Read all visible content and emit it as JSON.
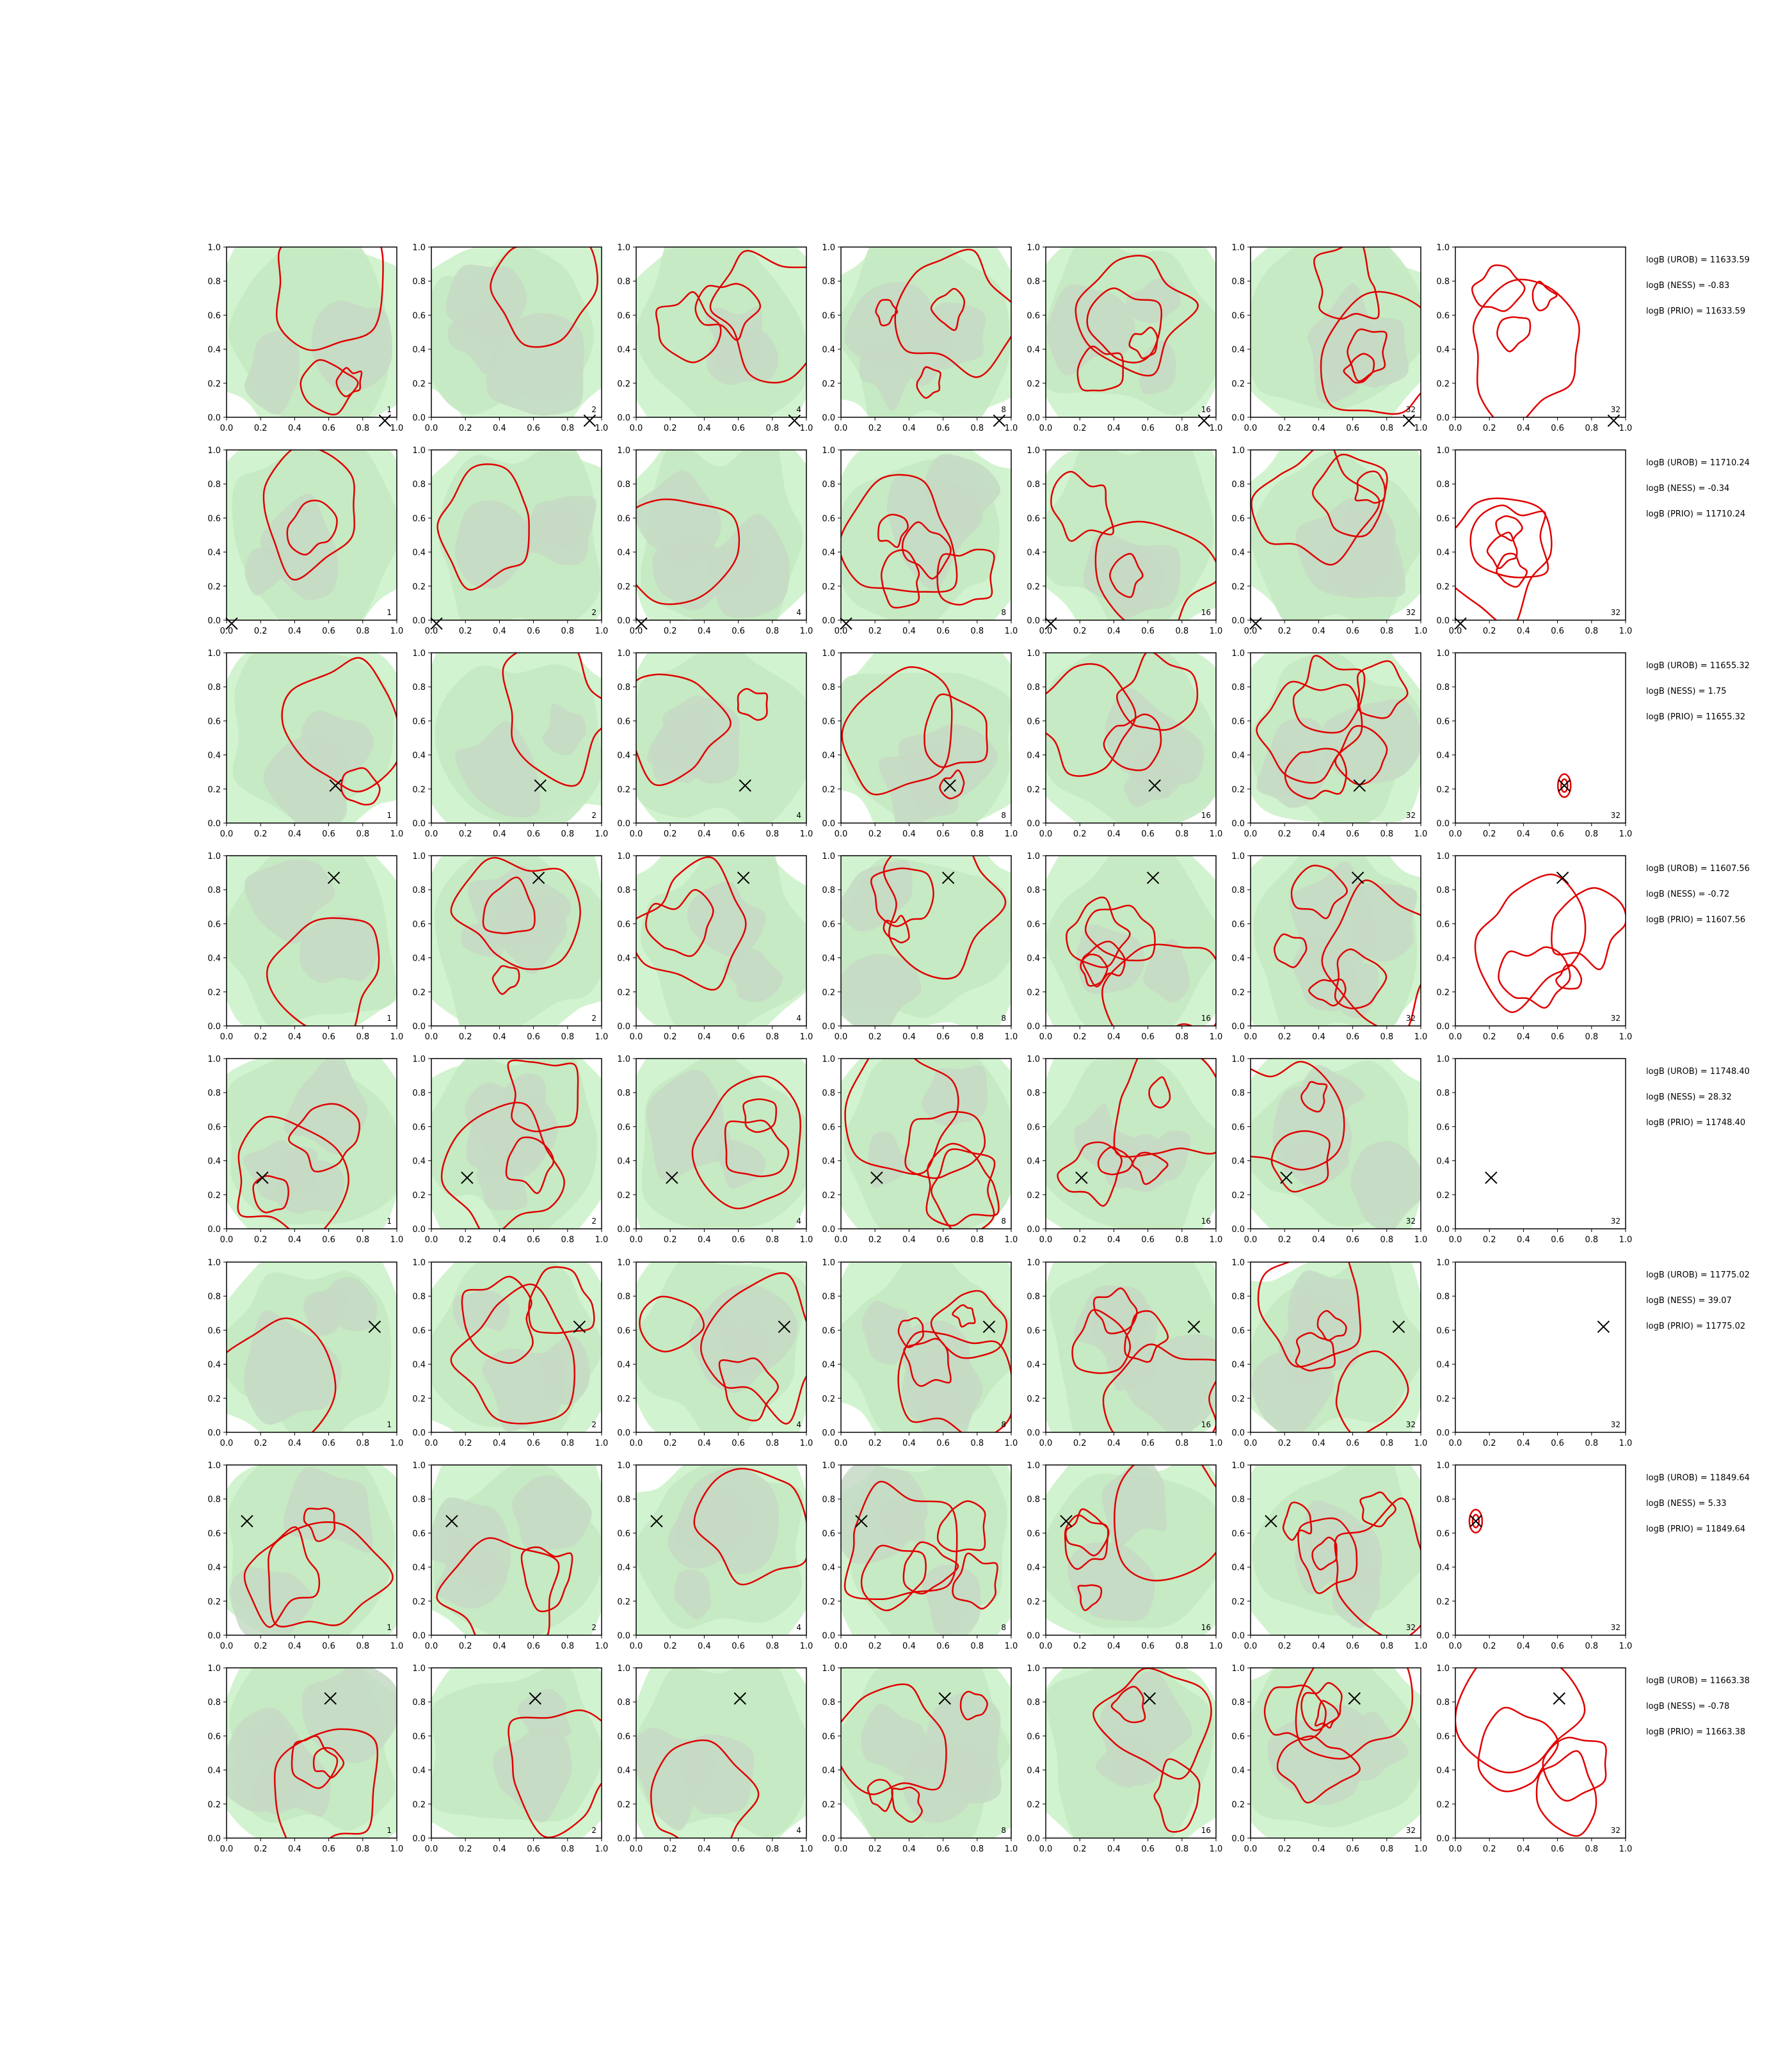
{
  "chart_data": {
    "type": "contour",
    "layout": "8 rows x 7 columns of contour panels",
    "xlim": [
      0,
      1
    ],
    "ylim": [
      0,
      1
    ],
    "ticks": [
      "0.0",
      "0.2",
      "0.4",
      "0.6",
      "0.8",
      "1.0"
    ],
    "panel_labels": [
      "1",
      "2",
      "4",
      "8",
      "16",
      "32",
      "32"
    ],
    "colors": {
      "fill_light": "#d2f3cf",
      "fill_mid": "#c4e9c1",
      "fill_grey": "#c6d9c4",
      "contour": "#e00000",
      "marker": "#000000"
    },
    "rows": [
      {
        "marker": [
          0.93,
          -0.02
        ],
        "filled": [
          true,
          true,
          true,
          true,
          true,
          true,
          false
        ],
        "logB": [
          "logB (UROB) = 11633.59",
          "logB (NESS) = -0.83",
          "logB (PRIO) = 11633.59"
        ]
      },
      {
        "marker": [
          0.03,
          -0.02
        ],
        "filled": [
          true,
          true,
          true,
          true,
          true,
          true,
          false
        ],
        "logB": [
          "logB (UROB) = 11710.24",
          "logB (NESS) = -0.34",
          "logB (PRIO) = 11710.24"
        ]
      },
      {
        "marker": [
          0.64,
          0.22
        ],
        "filled": [
          true,
          true,
          true,
          true,
          true,
          true,
          false
        ],
        "logB": [
          "logB (UROB) = 11655.32",
          "logB (NESS) = 1.75",
          "logB (PRIO) = 11655.32"
        ]
      },
      {
        "marker": [
          0.63,
          0.87
        ],
        "filled": [
          true,
          true,
          true,
          true,
          true,
          true,
          false
        ],
        "logB": [
          "logB (UROB) = 11607.56",
          "logB (NESS) = -0.72",
          "logB (PRIO) = 11607.56"
        ]
      },
      {
        "marker": [
          0.21,
          0.3
        ],
        "filled": [
          true,
          true,
          true,
          true,
          true,
          true,
          false
        ],
        "logB": [
          "logB (UROB) = 11748.40",
          "logB (NESS) = 28.32",
          "logB (PRIO) = 11748.40"
        ]
      },
      {
        "marker": [
          0.87,
          0.62
        ],
        "filled": [
          true,
          true,
          true,
          true,
          true,
          true,
          false
        ],
        "logB": [
          "logB (UROB) = 11775.02",
          "logB (NESS) = 39.07",
          "logB (PRIO) = 11775.02"
        ]
      },
      {
        "marker": [
          0.12,
          0.67
        ],
        "filled": [
          true,
          true,
          true,
          true,
          true,
          true,
          false
        ],
        "logB": [
          "logB (UROB) = 11849.64",
          "logB (NESS) = 5.33",
          "logB (PRIO) = 11849.64"
        ]
      },
      {
        "marker": [
          0.61,
          0.82
        ],
        "filled": [
          true,
          true,
          true,
          true,
          true,
          true,
          false
        ],
        "logB": [
          "logB (UROB) = 11663.38",
          "logB (NESS) = -0.78",
          "logB (PRIO) = 11663.38"
        ]
      }
    ]
  }
}
